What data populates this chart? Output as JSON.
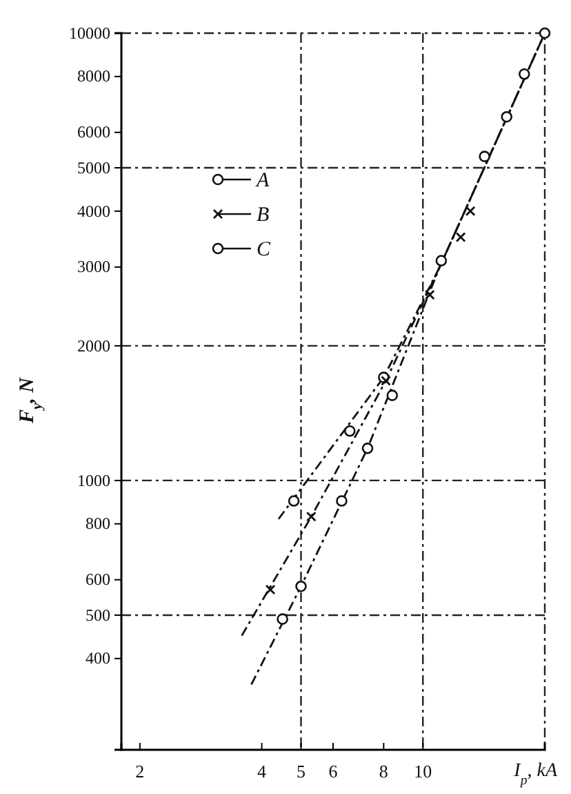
{
  "chart_data": {
    "type": "scatter",
    "xlabel": "I$_{p}$, kA",
    "ylabel": "F$_{y}$, N",
    "log": "xy",
    "xlim": [
      1.8,
      20
    ],
    "ylim": [
      250,
      10000
    ],
    "xticks": [
      2,
      4,
      5,
      6,
      8,
      10
    ],
    "yticks": [
      400,
      500,
      600,
      800,
      1000,
      2000,
      3000,
      4000,
      5000,
      6000,
      8000,
      10000
    ],
    "legend": "top left",
    "marker": "circle",
    "grid": false,
    "ref_lines": [
      {
        "axis": "y",
        "value": 500,
        "line_style": "dashed"
      },
      {
        "axis": "y",
        "value": 1000,
        "line_style": "dashed"
      },
      {
        "axis": "y",
        "value": 2000,
        "line_style": "dashed"
      },
      {
        "axis": "y",
        "value": 5000,
        "line_style": "dashed"
      },
      {
        "axis": "x",
        "value": 5,
        "line_style": "dashed"
      },
      {
        "axis": "x",
        "value": 10,
        "line_style": "dashed"
      }
    ],
    "series": [
      {
        "type": "line",
        "color": "#111111",
        "line_style": "dashed",
        "marker": "none",
        "x": [
          4.4,
          8,
          11,
          20
        ],
        "values": [
          820,
          1700,
          3000,
          10000
        ]
      },
      {
        "type": "line",
        "color": "#111111",
        "line_style": "dashed",
        "marker": "none",
        "x": [
          3.57,
          5.3,
          8.1,
          11,
          20
        ],
        "values": [
          450,
          830,
          1670,
          3000,
          10000
        ]
      },
      {
        "type": "line",
        "color": "#111111",
        "line_style": "dashed",
        "marker": "none",
        "x": [
          3.77,
          5,
          7.3,
          9.2,
          11,
          20
        ],
        "values": [
          350,
          580,
          1180,
          2000,
          3000,
          10000
        ]
      },
      {
        "name": "A",
        "color": "#111111",
        "x": [
          4.8,
          6.6,
          8,
          11.1,
          14.2,
          16.1,
          17.8,
          20
        ],
        "values": [
          900,
          1290,
          1700,
          3100,
          5300,
          6500,
          8100,
          10000
        ]
      },
      {
        "name": "B",
        "color": "#111111",
        "marker": "cross",
        "x": [
          4.2,
          5.3,
          8.1,
          10.4,
          12.4,
          13.1
        ],
        "values": [
          570,
          830,
          1670,
          2600,
          3500,
          4000
        ]
      },
      {
        "name": "C",
        "color": "#111111",
        "x": [
          4.5,
          5,
          6.3,
          7.3,
          8.4
        ],
        "values": [
          490,
          580,
          900,
          1180,
          1550
        ]
      }
    ]
  }
}
